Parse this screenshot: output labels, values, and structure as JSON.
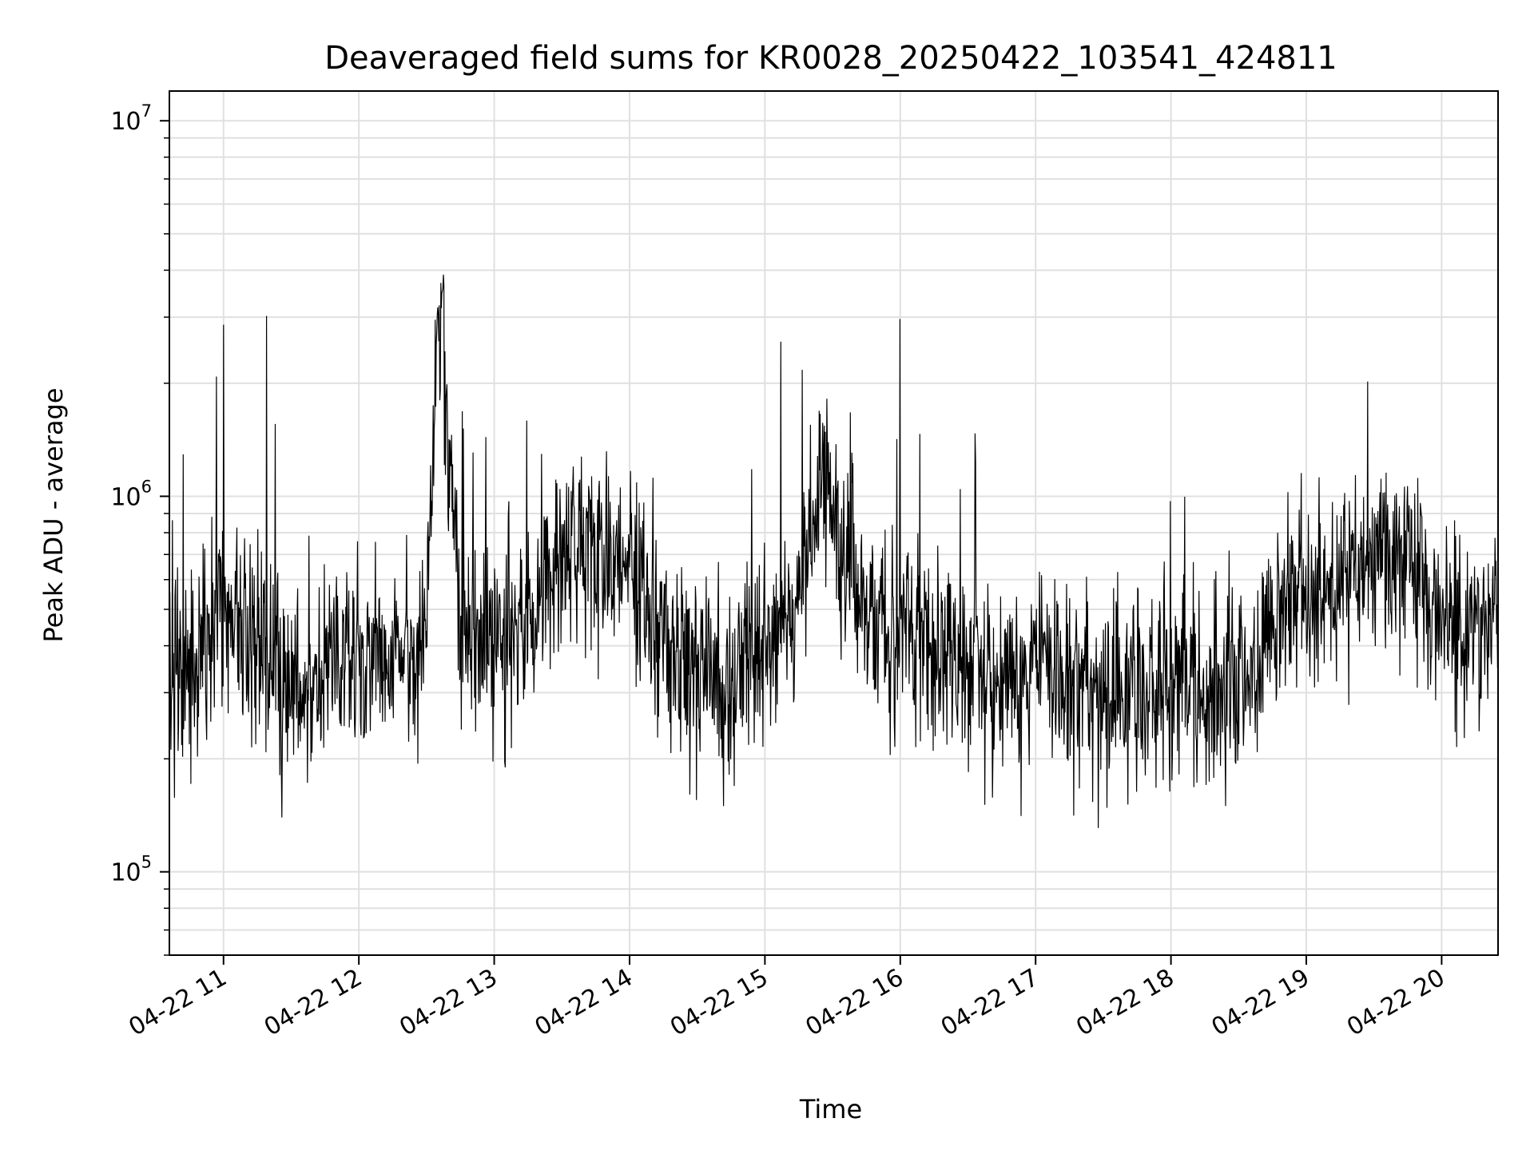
{
  "chart_data": {
    "type": "line",
    "title": "Deaveraged field sums for KR0028_20250422_103541_424811",
    "xlabel": "Time",
    "ylabel": "Peak ADU - average",
    "y_scale": "log",
    "ylim": [
      60000,
      12000000
    ],
    "xlim": [
      "2025-04-22 10:36",
      "2025-04-22 20:25"
    ],
    "grid": true,
    "line_color": "#000000",
    "grid_color": "#e0e0e0",
    "x_ticks": [
      {
        "label": "04-22 11",
        "time": "2025-04-22 11:00"
      },
      {
        "label": "04-22 12",
        "time": "2025-04-22 12:00"
      },
      {
        "label": "04-22 13",
        "time": "2025-04-22 13:00"
      },
      {
        "label": "04-22 14",
        "time": "2025-04-22 14:00"
      },
      {
        "label": "04-22 15",
        "time": "2025-04-22 15:00"
      },
      {
        "label": "04-22 16",
        "time": "2025-04-22 16:00"
      },
      {
        "label": "04-22 17",
        "time": "2025-04-22 17:00"
      },
      {
        "label": "04-22 18",
        "time": "2025-04-22 18:00"
      },
      {
        "label": "04-22 19",
        "time": "2025-04-22 19:00"
      },
      {
        "label": "04-22 20",
        "time": "2025-04-22 20:00"
      }
    ],
    "y_ticks": [
      {
        "base": "10",
        "exp": "5",
        "value": 100000
      },
      {
        "base": "10",
        "exp": "6",
        "value": 1000000
      },
      {
        "base": "10",
        "exp": "7",
        "value": 10000000
      }
    ],
    "series": [
      {
        "x": [
          "2025-04-22 10:36",
          "2025-04-22 10:45",
          "2025-04-22 11:00",
          "2025-04-22 11:15",
          "2025-04-22 11:30",
          "2025-04-22 11:45",
          "2025-04-22 12:00",
          "2025-04-22 12:15",
          "2025-04-22 12:30",
          "2025-04-22 12:35",
          "2025-04-22 12:45",
          "2025-04-22 13:00",
          "2025-04-22 13:15",
          "2025-04-22 13:30",
          "2025-04-22 13:40",
          "2025-04-22 14:00",
          "2025-04-22 14:15",
          "2025-04-22 14:30",
          "2025-04-22 14:45",
          "2025-04-22 15:00",
          "2025-04-22 15:15",
          "2025-04-22 15:25",
          "2025-04-22 15:45",
          "2025-04-22 16:00",
          "2025-04-22 16:15",
          "2025-04-22 16:30",
          "2025-04-22 16:45",
          "2025-04-22 17:00",
          "2025-04-22 17:15",
          "2025-04-22 17:30",
          "2025-04-22 17:45",
          "2025-04-22 18:00",
          "2025-04-22 18:15",
          "2025-04-22 18:30",
          "2025-04-22 18:45",
          "2025-04-22 18:55",
          "2025-04-22 19:15",
          "2025-04-22 19:30",
          "2025-04-22 19:45",
          "2025-04-22 20:00",
          "2025-04-22 20:15",
          "2025-04-22 20:25"
        ],
        "y": [
          380000,
          300000,
          520000,
          400000,
          300000,
          330000,
          380000,
          360000,
          420000,
          3500000,
          480000,
          400000,
          500000,
          650000,
          800000,
          680000,
          400000,
          350000,
          300000,
          420000,
          520000,
          1100000,
          500000,
          430000,
          380000,
          360000,
          340000,
          350000,
          330000,
          300000,
          310000,
          300000,
          290000,
          330000,
          440000,
          550000,
          560000,
          700000,
          650000,
          480000,
          430000,
          480000
        ]
      }
    ]
  }
}
